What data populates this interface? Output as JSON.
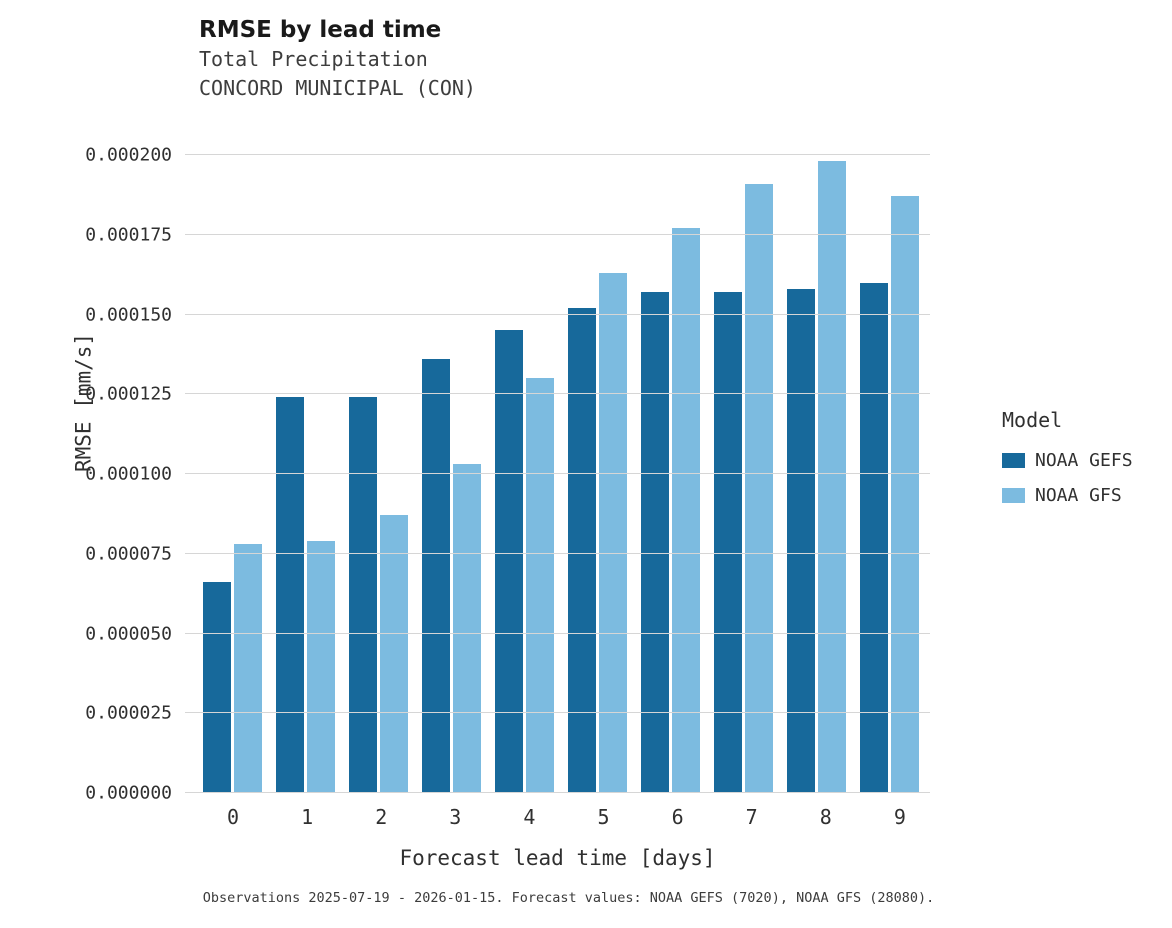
{
  "header": {
    "title": "RMSE by lead time",
    "subtitle1": "Total Precipitation",
    "subtitle2": "CONCORD MUNICIPAL (CON)"
  },
  "legend": {
    "title": "Model",
    "entries": [
      {
        "label": "NOAA GEFS",
        "color": "#17699b"
      },
      {
        "label": "NOAA GFS",
        "color": "#7cbbe0"
      }
    ]
  },
  "caption": "Observations 2025-07-19 - 2026-01-15. Forecast values: NOAA GEFS (7020), NOAA GFS (28080).",
  "chart_data": {
    "type": "bar",
    "title": "RMSE by lead time",
    "subtitle": "Total Precipitation — CONCORD MUNICIPAL (CON)",
    "xlabel": "Forecast lead time [days]",
    "ylabel": "RMSE [mm/s]",
    "categories": [
      "0",
      "1",
      "2",
      "3",
      "4",
      "5",
      "6",
      "7",
      "8",
      "9"
    ],
    "series": [
      {
        "name": "NOAA GEFS",
        "color": "#17699b",
        "values": [
          6.6e-05,
          0.000124,
          0.000124,
          0.000136,
          0.000145,
          0.000152,
          0.000157,
          0.000157,
          0.000158,
          0.00016
        ]
      },
      {
        "name": "NOAA GFS",
        "color": "#7cbbe0",
        "values": [
          7.8e-05,
          7.9e-05,
          8.7e-05,
          0.000103,
          0.00013,
          0.000163,
          0.000177,
          0.000191,
          0.000198,
          0.000187
        ]
      }
    ],
    "ylim": [
      0,
      0.0002
    ],
    "yticks": [
      0.0,
      2.5e-05,
      5e-05,
      7.5e-05,
      0.0001,
      0.000125,
      0.00015,
      0.000175,
      0.0002
    ],
    "ytick_labels": [
      "0.000000",
      "0.000025",
      "0.000050",
      "0.000075",
      "0.000100",
      "0.000125",
      "0.000150",
      "0.000175",
      "0.000200"
    ],
    "grid": true,
    "legend_position": "right"
  }
}
